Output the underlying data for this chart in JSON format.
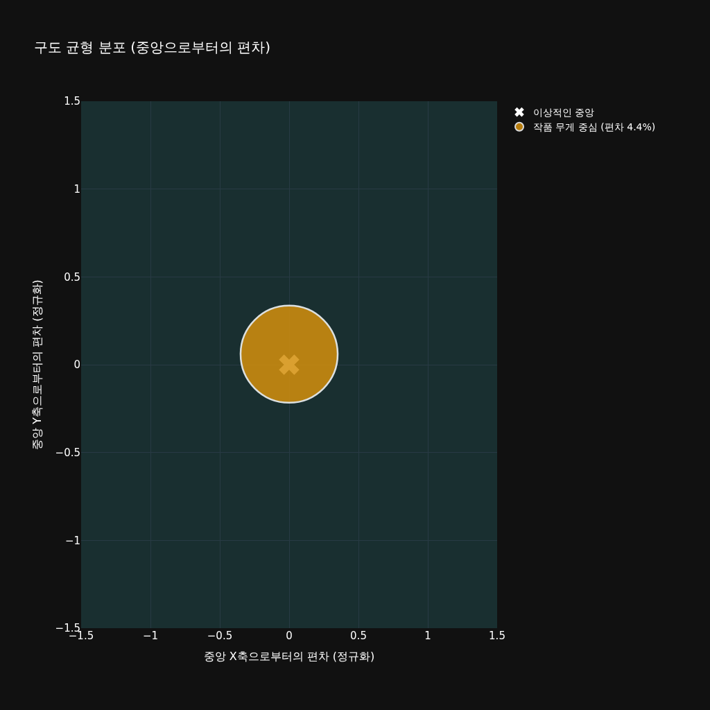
{
  "chart_data": {
    "type": "scatter",
    "title": "구도 균형 분포 (중앙으로부터의 편차)",
    "xlabel": "중앙 X축으로부터의 편차 (정규화)",
    "ylabel": "중앙 Y축으로부터의 편차 (정규화)",
    "series": [
      {
        "name": "이상적인 중앙",
        "color": "#ffffff",
        "marker": "cross",
        "x": [
          0
        ],
        "values": [
          0
        ]
      },
      {
        "name": "작품 무게 중심 (편차 4.4%)",
        "color": "#d4900d",
        "marker": "circle",
        "x": [
          0
        ],
        "values": [
          0.06
        ]
      }
    ],
    "xlim": [
      -1.5,
      1.5
    ],
    "ylim": [
      -1.5,
      1.5
    ],
    "xticks": [
      {
        "value": -1.5,
        "label": "−1.5"
      },
      {
        "value": -1,
        "label": "−1"
      },
      {
        "value": -0.5,
        "label": "−0.5"
      },
      0,
      0.5,
      1,
      1.5
    ],
    "yticks": [
      {
        "value": -1.5,
        "label": "−1.5"
      },
      {
        "value": -1,
        "label": "−1"
      },
      {
        "value": -0.5,
        "label": "−0.5"
      },
      0,
      0.5,
      1,
      1.5
    ],
    "grid": true,
    "legend": "top right"
  }
}
